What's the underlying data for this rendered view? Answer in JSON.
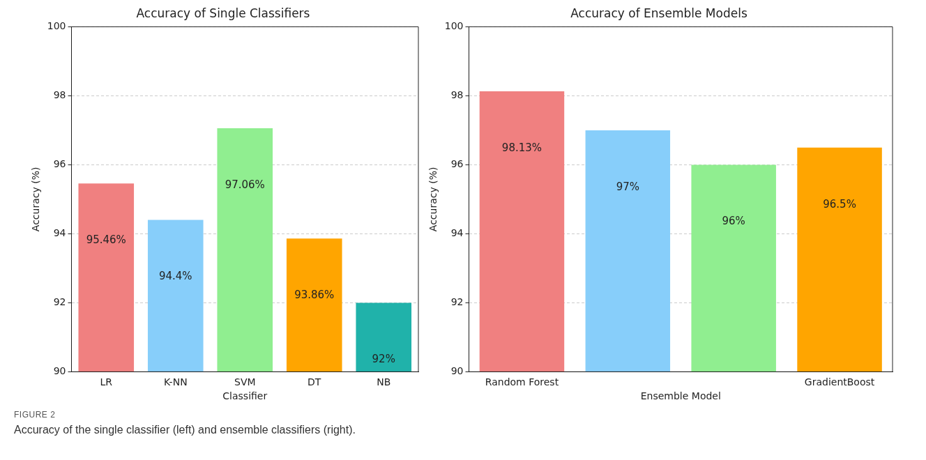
{
  "chart_data": [
    {
      "type": "bar",
      "title": "Accuracy of Single Classifiers",
      "xlabel": "Classifier",
      "ylabel": "Accuracy (%)",
      "categories": [
        "LR",
        "K-NN",
        "SVM",
        "DT",
        "NB"
      ],
      "values": [
        95.46,
        94.4,
        97.06,
        93.86,
        92
      ],
      "colors": [
        "#f08080",
        "#87cefa",
        "#90ee90",
        "#ffa500",
        "#20b2aa"
      ],
      "value_labels": [
        "95.46%",
        "94.4%",
        "97.06%",
        "93.86%",
        "92%"
      ],
      "ylim": [
        90,
        100
      ],
      "yticks": [
        90,
        92,
        94,
        96,
        98,
        100
      ],
      "grid": "y"
    },
    {
      "type": "bar",
      "title": "Accuracy of Ensemble Models",
      "xlabel": "Ensemble Model",
      "ylabel": "Accuracy (%)",
      "categories": [
        "Random Forest",
        null,
        null,
        "GradientBoost"
      ],
      "values": [
        98.13,
        97,
        96,
        96.5
      ],
      "colors": [
        "#f08080",
        "#87cefa",
        "#90ee90",
        "#ffa500"
      ],
      "value_labels": [
        "98.13%",
        "97%",
        "96%",
        "96.5%"
      ],
      "ylim": [
        90,
        100
      ],
      "yticks": [
        90,
        92,
        94,
        96,
        98,
        100
      ],
      "grid": "y",
      "annotations": [
        "FIGURE 2",
        "Accuracy of the single classifier (left) and ensemble classifiers (right)."
      ]
    }
  ]
}
